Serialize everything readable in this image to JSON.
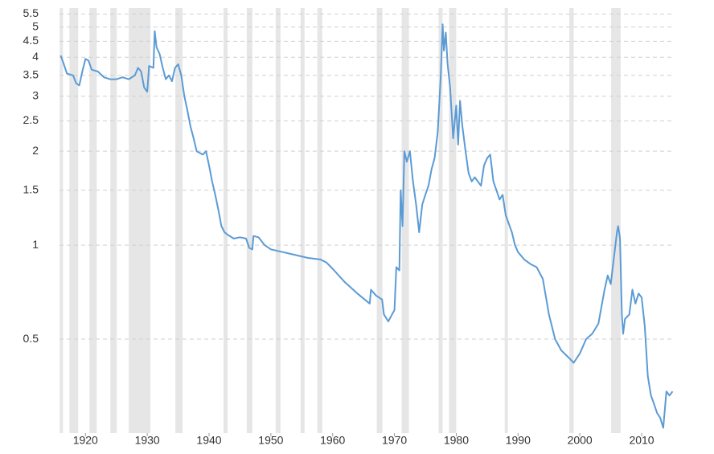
{
  "chart_data": {
    "type": "line",
    "log_y": true,
    "grid": true,
    "color": "#5b9bd5",
    "band_color": "#e6e6e6",
    "xlim": [
      1915.8,
      2015.2
    ],
    "xticks": [
      1920,
      1930,
      1940,
      1950,
      1960,
      1970,
      1980,
      1990,
      2000,
      2010
    ],
    "ylim": [
      0.25,
      5.75
    ],
    "yticks": [
      0.5,
      1,
      1.5,
      2,
      2.5,
      3,
      3.5,
      4,
      4.5,
      5,
      5.5
    ],
    "recessions": [
      [
        1915.84,
        1916.36
      ],
      [
        1917.4,
        1918.83
      ],
      [
        1920.65,
        1921.82
      ],
      [
        1924.03,
        1925.06
      ],
      [
        1927.01,
        1930.52
      ],
      [
        1934.55,
        1935.71
      ],
      [
        1942.34,
        1942.99
      ],
      [
        1946.1,
        1947.0
      ],
      [
        1950.78,
        1951.56
      ],
      [
        1954.8,
        1955.45
      ],
      [
        1957.53,
        1958.3
      ],
      [
        1967.14,
        1968.05
      ],
      [
        1971.17,
        1972.34
      ],
      [
        1977.14,
        1977.79
      ],
      [
        1978.83,
        1980.0
      ],
      [
        1987.84,
        1988.36
      ],
      [
        1998.3,
        1999.0
      ],
      [
        2005.06,
        2006.6
      ]
    ],
    "x": [
      1916,
      1916.5,
      1917,
      1918,
      1918.5,
      1919,
      1919.5,
      1920,
      1920.5,
      1921,
      1922,
      1923,
      1924,
      1925,
      1926,
      1927,
      1928,
      1928.5,
      1929,
      1929.5,
      1930,
      1930.3,
      1931,
      1931.2,
      1931.5,
      1932,
      1932.5,
      1933,
      1933.5,
      1934,
      1934.5,
      1935,
      1935.5,
      1936,
      1936.5,
      1937,
      1937.5,
      1938,
      1939,
      1939.5,
      1940,
      1940.5,
      1941,
      1941.5,
      1942,
      1942.5,
      1943,
      1944,
      1945,
      1946,
      1946.5,
      1947,
      1947.2,
      1948,
      1949,
      1950,
      1952,
      1954,
      1956,
      1958,
      1959,
      1960,
      1962,
      1964,
      1966,
      1966.2,
      1967,
      1968,
      1968.3,
      1969,
      1970,
      1970.3,
      1970.8,
      1971,
      1971.3,
      1971.6,
      1972,
      1972.5,
      1973,
      1973.5,
      1974,
      1974.5,
      1975,
      1975.5,
      1976,
      1976.5,
      1977,
      1977.5,
      1977.8,
      1978,
      1978.3,
      1978.6,
      1979,
      1979.5,
      1980,
      1980.3,
      1980.6,
      1981,
      1981.5,
      1982,
      1982.5,
      1983,
      1984,
      1984.5,
      1985,
      1985.5,
      1986,
      1986.5,
      1987,
      1987.5,
      1988,
      1989,
      1989.5,
      1990,
      1991,
      1992,
      1993,
      1994,
      1995,
      1996,
      1997,
      1998,
      1999,
      2000,
      2001,
      2002,
      2003,
      2004,
      2004.5,
      2005,
      2006,
      2006.2,
      2006.5,
      2006.8,
      2007,
      2007.3,
      2008,
      2008.5,
      2009,
      2009.5,
      2010,
      2010.5,
      2011,
      2011.5,
      2012,
      2012.5,
      2013,
      2013.5,
      2014,
      2014.5,
      2015
    ],
    "values": [
      4.05,
      3.8,
      3.55,
      3.5,
      3.3,
      3.25,
      3.6,
      3.95,
      3.9,
      3.65,
      3.6,
      3.45,
      3.4,
      3.4,
      3.45,
      3.4,
      3.5,
      3.7,
      3.6,
      3.2,
      3.1,
      3.75,
      3.7,
      4.85,
      4.3,
      4.1,
      3.7,
      3.4,
      3.5,
      3.35,
      3.7,
      3.8,
      3.5,
      3.0,
      2.7,
      2.4,
      2.2,
      2.0,
      1.95,
      2.0,
      1.8,
      1.6,
      1.45,
      1.3,
      1.15,
      1.1,
      1.08,
      1.05,
      1.06,
      1.05,
      0.98,
      0.97,
      1.07,
      1.06,
      1.0,
      0.97,
      0.95,
      0.93,
      0.91,
      0.9,
      0.88,
      0.84,
      0.76,
      0.7,
      0.65,
      0.72,
      0.69,
      0.67,
      0.6,
      0.57,
      0.62,
      0.85,
      0.83,
      1.5,
      1.15,
      2.0,
      1.85,
      2.0,
      1.6,
      1.35,
      1.1,
      1.35,
      1.45,
      1.55,
      1.75,
      1.9,
      2.3,
      3.5,
      5.1,
      4.2,
      4.8,
      3.8,
      3.2,
      2.2,
      2.8,
      2.1,
      2.9,
      2.4,
      2.0,
      1.7,
      1.6,
      1.65,
      1.55,
      1.8,
      1.9,
      1.95,
      1.6,
      1.5,
      1.4,
      1.45,
      1.25,
      1.1,
      1.0,
      0.95,
      0.9,
      0.87,
      0.85,
      0.78,
      0.6,
      0.5,
      0.46,
      0.44,
      0.42,
      0.45,
      0.5,
      0.52,
      0.56,
      0.72,
      0.8,
      0.75,
      1.1,
      1.15,
      1.05,
      0.6,
      0.52,
      0.58,
      0.6,
      0.72,
      0.65,
      0.7,
      0.68,
      0.55,
      0.38,
      0.33,
      0.31,
      0.29,
      0.28,
      0.26,
      0.34,
      0.33,
      0.34
    ]
  }
}
